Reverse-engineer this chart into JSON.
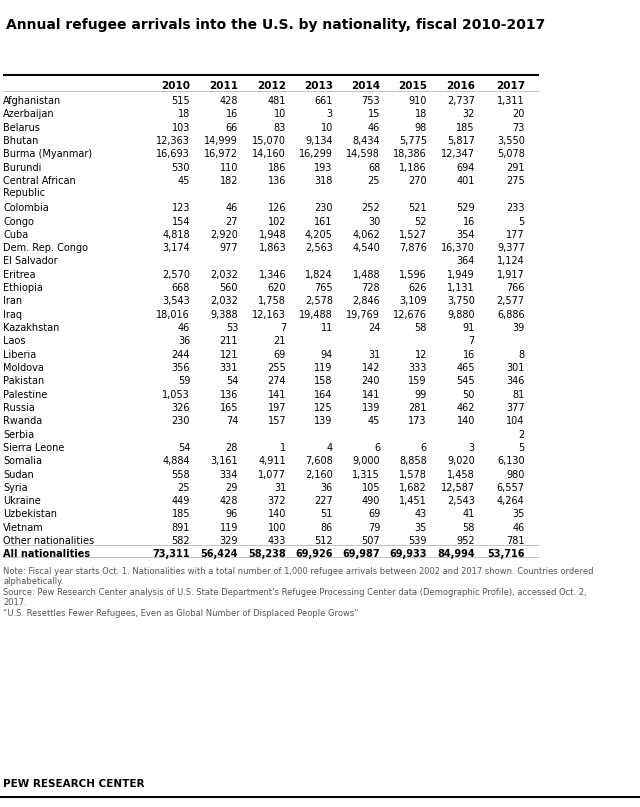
{
  "title": "Annual refugee arrivals into the U.S. by nationality, fiscal 2010-2017",
  "columns": [
    "",
    "2010",
    "2011",
    "2012",
    "2013",
    "2014",
    "2015",
    "2016",
    "2017"
  ],
  "rows": [
    [
      "Afghanistan",
      "515",
      "428",
      "481",
      "661",
      "753",
      "910",
      "2,737",
      "1,311"
    ],
    [
      "Azerbaijan",
      "18",
      "16",
      "10",
      "3",
      "15",
      "18",
      "32",
      "20"
    ],
    [
      "Belarus",
      "103",
      "66",
      "83",
      "10",
      "46",
      "98",
      "185",
      "73"
    ],
    [
      "Bhutan",
      "12,363",
      "14,999",
      "15,070",
      "9,134",
      "8,434",
      "5,775",
      "5,817",
      "3,550"
    ],
    [
      "Burma (Myanmar)",
      "16,693",
      "16,972",
      "14,160",
      "16,299",
      "14,598",
      "18,386",
      "12,347",
      "5,078"
    ],
    [
      "Burundi",
      "530",
      "110",
      "186",
      "193",
      "68",
      "1,186",
      "694",
      "291"
    ],
    [
      "Central African\nRepublic",
      "45",
      "182",
      "136",
      "318",
      "25",
      "270",
      "401",
      "275"
    ],
    [
      "Colombia",
      "123",
      "46",
      "126",
      "230",
      "252",
      "521",
      "529",
      "233"
    ],
    [
      "Congo",
      "154",
      "27",
      "102",
      "161",
      "30",
      "52",
      "16",
      "5"
    ],
    [
      "Cuba",
      "4,818",
      "2,920",
      "1,948",
      "4,205",
      "4,062",
      "1,527",
      "354",
      "177"
    ],
    [
      "Dem. Rep. Congo",
      "3,174",
      "977",
      "1,863",
      "2,563",
      "4,540",
      "7,876",
      "16,370",
      "9,377"
    ],
    [
      "El Salvador",
      "",
      "",
      "",
      "",
      "",
      "",
      "364",
      "1,124"
    ],
    [
      "Eritrea",
      "2,570",
      "2,032",
      "1,346",
      "1,824",
      "1,488",
      "1,596",
      "1,949",
      "1,917"
    ],
    [
      "Ethiopia",
      "668",
      "560",
      "620",
      "765",
      "728",
      "626",
      "1,131",
      "766"
    ],
    [
      "Iran",
      "3,543",
      "2,032",
      "1,758",
      "2,578",
      "2,846",
      "3,109",
      "3,750",
      "2,577"
    ],
    [
      "Iraq",
      "18,016",
      "9,388",
      "12,163",
      "19,488",
      "19,769",
      "12,676",
      "9,880",
      "6,886"
    ],
    [
      "Kazakhstan",
      "46",
      "53",
      "7",
      "11",
      "24",
      "58",
      "91",
      "39"
    ],
    [
      "Laos",
      "36",
      "211",
      "21",
      "",
      "",
      "",
      "7",
      ""
    ],
    [
      "Liberia",
      "244",
      "121",
      "69",
      "94",
      "31",
      "12",
      "16",
      "8"
    ],
    [
      "Moldova",
      "356",
      "331",
      "255",
      "119",
      "142",
      "333",
      "465",
      "301"
    ],
    [
      "Pakistan",
      "59",
      "54",
      "274",
      "158",
      "240",
      "159",
      "545",
      "346"
    ],
    [
      "Palestine",
      "1,053",
      "136",
      "141",
      "164",
      "141",
      "99",
      "50",
      "81"
    ],
    [
      "Russia",
      "326",
      "165",
      "197",
      "125",
      "139",
      "281",
      "462",
      "377"
    ],
    [
      "Rwanda",
      "230",
      "74",
      "157",
      "139",
      "45",
      "173",
      "140",
      "104"
    ],
    [
      "Serbia",
      "",
      "",
      "",
      "",
      "",
      "",
      "",
      "2"
    ],
    [
      "Sierra Leone",
      "54",
      "28",
      "1",
      "4",
      "6",
      "6",
      "3",
      "5"
    ],
    [
      "Somalia",
      "4,884",
      "3,161",
      "4,911",
      "7,608",
      "9,000",
      "8,858",
      "9,020",
      "6,130"
    ],
    [
      "Sudan",
      "558",
      "334",
      "1,077",
      "2,160",
      "1,315",
      "1,578",
      "1,458",
      "980"
    ],
    [
      "Syria",
      "25",
      "29",
      "31",
      "36",
      "105",
      "1,682",
      "12,587",
      "6,557"
    ],
    [
      "Ukraine",
      "449",
      "428",
      "372",
      "227",
      "490",
      "1,451",
      "2,543",
      "4,264"
    ],
    [
      "Uzbekistan",
      "185",
      "96",
      "140",
      "51",
      "69",
      "43",
      "41",
      "35"
    ],
    [
      "Vietnam",
      "891",
      "119",
      "100",
      "86",
      "79",
      "35",
      "58",
      "46"
    ],
    [
      "Other nationalities",
      "582",
      "329",
      "433",
      "512",
      "507",
      "539",
      "952",
      "781"
    ],
    [
      "All nationalities",
      "73,311",
      "56,424",
      "58,238",
      "69,926",
      "69,987",
      "69,933",
      "84,994",
      "53,716"
    ]
  ],
  "bold_rows": [
    33
  ],
  "note_text": "Note: Fiscal year starts Oct. 1. Nationalities with a total number of 1,000 refugee arrivals between 2002 and 2017 shown. Countries ordered\nalphabetically.\nSource: Pew Research Center analysis of U.S. State Department’s Refugee Processing Center data (Demographic Profile), accessed Oct. 2,\n2017.\n“U.S. Resettles Fewer Refugees, Even as Global Number of Displaced People Grows”",
  "pew_label": "PEW RESEARCH CENTER",
  "bg_color": "#ffffff",
  "title_color": "#000000",
  "text_color": "#000000",
  "header_color": "#000000",
  "note_color": "#555555"
}
